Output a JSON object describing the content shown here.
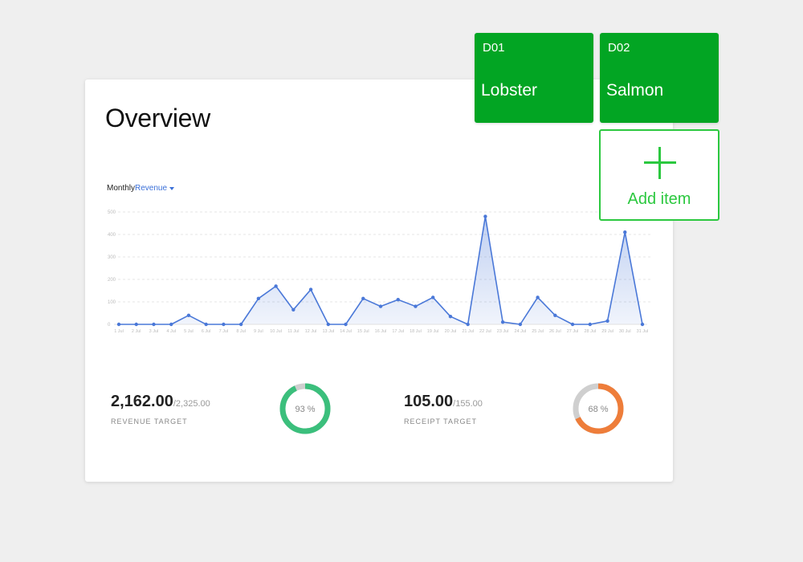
{
  "overview": {
    "title": "Overview",
    "period_label": "Monthly",
    "metric_label": "Revenue"
  },
  "chart_data": {
    "type": "area",
    "categories": [
      "1 Jul",
      "2 Jul",
      "3 Jul",
      "4 Jul",
      "5 Jul",
      "6 Jul",
      "7 Jul",
      "8 Jul",
      "9 Jul",
      "10 Jul",
      "11 Jul",
      "12 Jul",
      "13 Jul",
      "14 Jul",
      "15 Jul",
      "16 Jul",
      "17 Jul",
      "18 Jul",
      "19 Jul",
      "20 Jul",
      "21 Jul",
      "22 Jul",
      "23 Jul",
      "24 Jul",
      "25 Jul",
      "26 Jul",
      "27 Jul",
      "28 Jul",
      "29 Jul",
      "30 Jul",
      "31 Jul"
    ],
    "series": [
      {
        "values": [
          0,
          0,
          0,
          0,
          40,
          0,
          0,
          0,
          115,
          170,
          65,
          155,
          0,
          0,
          115,
          80,
          110,
          80,
          120,
          35,
          0,
          480,
          10,
          0,
          120,
          40,
          0,
          0,
          15,
          410,
          0
        ],
        "color": "#4a78d8"
      }
    ],
    "yticks": [
      0,
      100,
      200,
      300,
      400,
      500
    ],
    "ylim": [
      0,
      500
    ],
    "grid": true
  },
  "stats": [
    {
      "value": "2,162.00",
      "total": "/2,325.00",
      "label": "REVENUE TARGET",
      "percent_text": "93 %",
      "percent": 93,
      "color": "#3bbf7c"
    },
    {
      "value": "105.00",
      "total": "/155.00",
      "label": "RECEIPT TARGET",
      "percent_text": "68 %",
      "percent": 68,
      "color": "#ee7d3a"
    }
  ],
  "dishes": [
    {
      "code": "D01",
      "name": "Lobster"
    },
    {
      "code": "D02",
      "name": "Salmon"
    }
  ],
  "add_item": {
    "label": "Add item"
  },
  "colors": {
    "dish_bg": "#02a523",
    "add_green": "#2bc83f",
    "line_blue": "#4a78d8",
    "donut_track": "#cfcfcf"
  }
}
